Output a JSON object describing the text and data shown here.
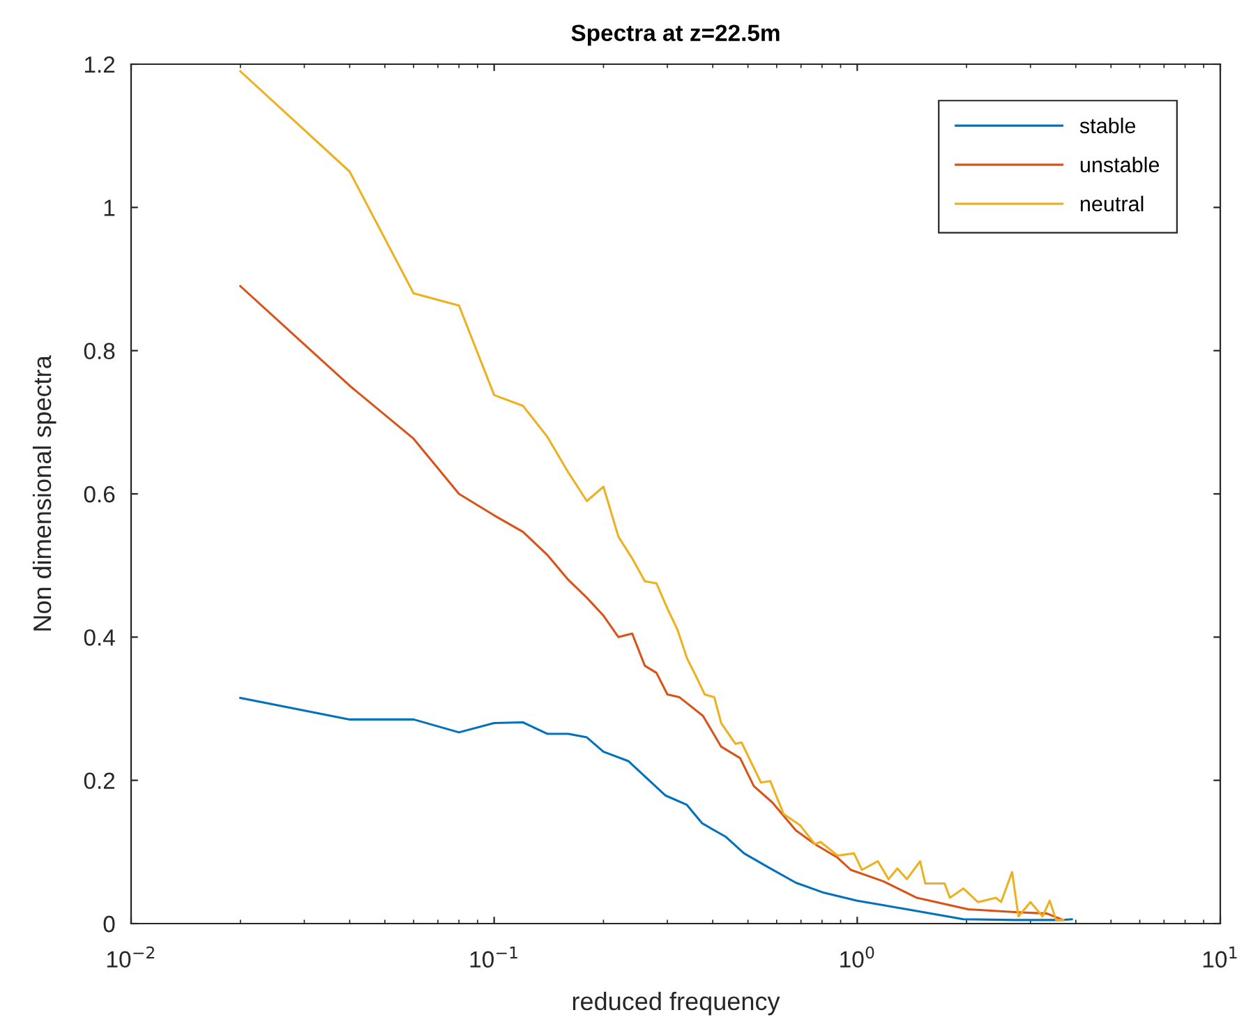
{
  "chart_data": {
    "type": "line",
    "title": "Spectra at z=22.5m",
    "xlabel": "reduced frequency",
    "ylabel": "Non dimensional spectra",
    "log": "x",
    "xlim": [
      0.01,
      10
    ],
    "xticks": [
      {
        "value": 0.01,
        "label": "10$^{−2}$"
      },
      {
        "value": 0.1,
        "label": "10$^{−1}$"
      },
      {
        "value": 1,
        "label": "10$^{0}$"
      },
      {
        "value": 10,
        "label": "10$^{1}$"
      }
    ],
    "ylim": [
      0,
      1.2
    ],
    "yticks": [
      0,
      0.2,
      0.4,
      0.6,
      0.8,
      1,
      1.2
    ],
    "grid": false,
    "legend": "top right",
    "line_style": "solid",
    "marker": "none",
    "series": [
      {
        "name": "stable",
        "color": "#0072bd",
        "x": [
          0.02,
          0.04,
          0.06,
          0.08,
          0.1,
          0.12,
          0.14,
          0.16,
          0.18,
          0.2,
          0.234,
          0.296,
          0.339,
          0.374,
          0.435,
          0.488,
          0.567,
          0.678,
          0.81,
          1.0,
          1.37,
          1.96,
          2.71,
          3.63,
          3.9
        ],
        "values": [
          0.315,
          0.285,
          0.285,
          0.267,
          0.28,
          0.281,
          0.265,
          0.265,
          0.26,
          0.24,
          0.227,
          0.179,
          0.166,
          0.14,
          0.121,
          0.098,
          0.079,
          0.057,
          0.043,
          0.032,
          0.02,
          0.006,
          0.005,
          0.005,
          0.006
        ]
      },
      {
        "name": "unstable",
        "color": "#d95319",
        "x": [
          0.02,
          0.04,
          0.06,
          0.08,
          0.1,
          0.12,
          0.14,
          0.16,
          0.18,
          0.2,
          0.22,
          0.24,
          0.26,
          0.28,
          0.3,
          0.324,
          0.376,
          0.422,
          0.476,
          0.519,
          0.584,
          0.678,
          0.764,
          0.883,
          0.96,
          1.18,
          1.46,
          2.02,
          2.71,
          3.33,
          3.69
        ],
        "values": [
          0.89,
          0.751,
          0.677,
          0.6,
          0.57,
          0.547,
          0.515,
          0.48,
          0.455,
          0.43,
          0.4,
          0.405,
          0.36,
          0.35,
          0.32,
          0.316,
          0.29,
          0.247,
          0.231,
          0.192,
          0.169,
          0.13,
          0.111,
          0.092,
          0.075,
          0.059,
          0.036,
          0.02,
          0.016,
          0.014,
          0.005
        ]
      },
      {
        "name": "neutral",
        "color": "#edb120",
        "x": [
          0.02,
          0.04,
          0.06,
          0.08,
          0.1,
          0.12,
          0.14,
          0.16,
          0.18,
          0.2,
          0.22,
          0.24,
          0.26,
          0.28,
          0.3,
          0.32,
          0.34,
          0.36,
          0.38,
          0.404,
          0.422,
          0.462,
          0.48,
          0.543,
          0.576,
          0.627,
          0.697,
          0.764,
          0.793,
          0.883,
          0.98,
          1.03,
          1.14,
          1.22,
          1.29,
          1.37,
          1.49,
          1.54,
          1.74,
          1.8,
          1.96,
          2.15,
          2.41,
          2.49,
          2.67,
          2.78,
          3.0,
          3.24,
          3.39,
          3.53,
          3.7
        ],
        "values": [
          1.19,
          1.05,
          0.88,
          0.863,
          0.738,
          0.723,
          0.68,
          0.63,
          0.59,
          0.61,
          0.54,
          0.51,
          0.478,
          0.475,
          0.44,
          0.41,
          0.37,
          0.345,
          0.32,
          0.316,
          0.28,
          0.251,
          0.253,
          0.197,
          0.199,
          0.153,
          0.137,
          0.111,
          0.114,
          0.095,
          0.098,
          0.075,
          0.087,
          0.062,
          0.077,
          0.062,
          0.087,
          0.056,
          0.056,
          0.036,
          0.049,
          0.03,
          0.036,
          0.03,
          0.072,
          0.01,
          0.03,
          0.01,
          0.032,
          0.005,
          0.005
        ]
      }
    ]
  }
}
